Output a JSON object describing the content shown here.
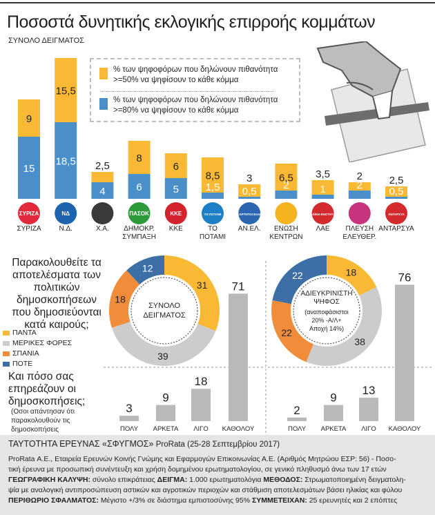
{
  "header": {
    "title": "Ποσοστά δυνητικής εκλογικής επιρροής κομμάτων",
    "subtitle": "ΣΥΝΟΛΟ ΔΕΙΓΜΑΤΟΣ"
  },
  "legend": {
    "yellow_line1": "% των ψηφοφόρων που δηλώνουν πιθανότητα",
    "yellow_line2": ">=50% να ψηφίσουν το κάθε κόμμα",
    "blue_line1": "% των ψηφοφόρων που δηλώνουν πιθανότητα",
    "blue_line2": ">=80% να ψηφίσουν το κάθε κόμμα"
  },
  "colors": {
    "yellow": "#f9b935",
    "blue": "#4a8fc9",
    "orange": "#f08c3a",
    "grey": "#cccccc",
    "darkblue": "#3d6ea6"
  },
  "chart_data": [
    {
      "type": "bar",
      "categories": [
        "ΣΥΡΙΖΑ",
        "Ν.Δ.",
        "Χ.Α.",
        "ΔΗΜΟΚΡ. ΣΥΜΠΑΞΗ",
        "ΚΚΕ",
        "ΤΟ ΠΟΤΑΜΙ",
        "ΑΝ.ΕΛ.",
        "ΕΝΩΣΗ ΚΕΝΤΡΩΝ",
        "ΛΑΕ",
        "ΠΛΕΥΣΗ ΕΛΕΥΘΕΡ.",
        "ΑΝΤΑΡΣΥΑ"
      ],
      "series": [
        {
          "name": ">=80% να ψηφίσουν το κάθε κόμμα",
          "values": [
            15,
            18.5,
            4,
            6,
            5,
            1.5,
            0.5,
            2,
            1,
            2,
            0.5
          ],
          "labels": [
            "15",
            "18,5",
            "4",
            "6",
            "5",
            "1,5",
            "0,5",
            "2",
            "1",
            "2",
            "0,5"
          ]
        },
        {
          "name": ">=50% να ψηφίσουν το κάθε κόμμα",
          "values": [
            9,
            15.5,
            2.5,
            8,
            6,
            8.5,
            3,
            6.5,
            3.5,
            2,
            2.5
          ],
          "labels": [
            "9",
            "15,5",
            "2,5",
            "8",
            "6",
            "8,5",
            "3",
            "6,5",
            "3,5",
            "2",
            "2,5"
          ]
        }
      ],
      "logos": [
        "ΣΥΡΙΖΑ",
        "ΝΔ",
        "",
        "ΠΑΣΟΚ",
        "ΚΚΕ",
        "ΤΟ ΠΟΤΑΜΙ",
        "ΑΝΕΞΑΡΤΗΤΟΙ ΕΛΛΗΝΕΣ",
        "",
        "ΛΑΪΚΗ ΕΝΟΤΗΤΑ",
        "",
        "ΑΝΤΑΡΣΥΑ"
      ]
    },
    {
      "type": "pie",
      "title": "ΣΥΝΟΛΟ ΔΕΙΓΜΑΤΟΣ",
      "labels": [
        "ΠΑΝΤΑ",
        "ΜΕΡΙΚΕΣ ΦΟΡΕΣ",
        "ΣΠΑΝΙΑ",
        "ΠΟΤΕ"
      ],
      "values": [
        31,
        39,
        18,
        12
      ]
    },
    {
      "type": "pie",
      "title": "ΑΔΙΕΥΚΡΙΝΙΣΤΗ ΨΗΦΟΣ",
      "subtitle": "(αναποφάσιστοι 20% -Α/Λ+ Αποχή 14%)",
      "labels": [
        "ΠΑΝΤΑ",
        "ΜΕΡΙΚΕΣ ΦΟΡΕΣ",
        "ΣΠΑΝΙΑ",
        "ΠΟΤΕ"
      ],
      "values": [
        18,
        38,
        22,
        22
      ]
    },
    {
      "type": "bar",
      "title": "ΣΥΝΟΛΟ ΔΕΙΓΜΑΤΟΣ",
      "categories": [
        "ΠΟΛΥ",
        "ΑΡΚΕΤΑ",
        "ΛΙΓΟ",
        "ΚΑΘΟΛΟΥ"
      ],
      "values": [
        3,
        9,
        18,
        71
      ]
    },
    {
      "type": "bar",
      "title": "ΑΔΙΕΥΚΡΙΝΙΣΤΗ ΨΗΦΟΣ",
      "categories": [
        "ΠΟΛΥ",
        "ΑΡΚΕΤΑ",
        "ΛΙΓΟ",
        "ΚΑΘΟΛΟΥ"
      ],
      "values": [
        2,
        9,
        13,
        76
      ]
    }
  ],
  "donut_legend": {
    "question": "Παρακολουθείτε τα αποτελέσματα των πολιτικών δημοσκοπήσεων που δημοσιεύονται κατά καιρούς;",
    "items": [
      "ΠΑΝΤΑ",
      "ΜΕΡΙΚΕΣ ΦΟΡΕΣ",
      "ΣΠΑΝΙΑ",
      "ΠΟΤΕ"
    ]
  },
  "question2": {
    "text": "Και πόσο σας επηρεάζουν οι δημοσκοπήσεις;",
    "note": "(Οσοι απάντησαν ότι παρακολουθούν τις δημοσκοπήσεις «πάντα»/«μερικές φορές»)"
  },
  "footer": {
    "head_a": "ΤΑΥΤΟΤΗΤΑ ΕΡΕΥΝΑΣ «ΣΦΥΓΜΟΣ» ",
    "head_b": "ProRata (25-28 Σεπτεμβρίου 2017)",
    "line1": "ProRata Α.Ε., Εταιρεία Ερευνών Κοινής Γνώμης και Εφαρμογών Επικοινωνίας Α.Ε. (Αριθμός Μητρώου ΕΣΡ: 56) - Ποσο-",
    "line2": "τική έρευνα με προσωπική συνέντευξη και χρήση δομημένου ερωτηματολογίου, σε γενικό πληθυσμό άνω των 17 ετών",
    "l3_k1": "ΓΕΩΓΡΑΦΙΚΗ ΚΑΛΥΨΗ: ",
    "l3_v1": "σύνολο επικράτειας ",
    "l3_k2": "ΔΕΙΓΜΑ: ",
    "l3_v2": "1.000 ερωτηματολόγια ",
    "l3_k3": "ΜΕΘΟΔΟΣ: ",
    "l3_v3": "Στρωματοποιημένη δειγματολη-",
    "line4": "ψία με αναλογική αντιπροσώπευση αστικών και αγροτικών περιοχών και στάθμιση αποτελεσμάτων βάσει ηλικίας και φύλου",
    "l5_k1": "ΠΕΡΙΘΩΡΙΟ ΣΦΑΛΜΑΤΟΣ: ",
    "l5_v1": "Μέγιστο +/3% σε διάστημα εμπιστοσύνης 95% ",
    "l5_k2": "ΣΥΜΜΕΤΕΙΧΑΝ: ",
    "l5_v2": "25 ερευνητές και 2 επόπτες"
  }
}
